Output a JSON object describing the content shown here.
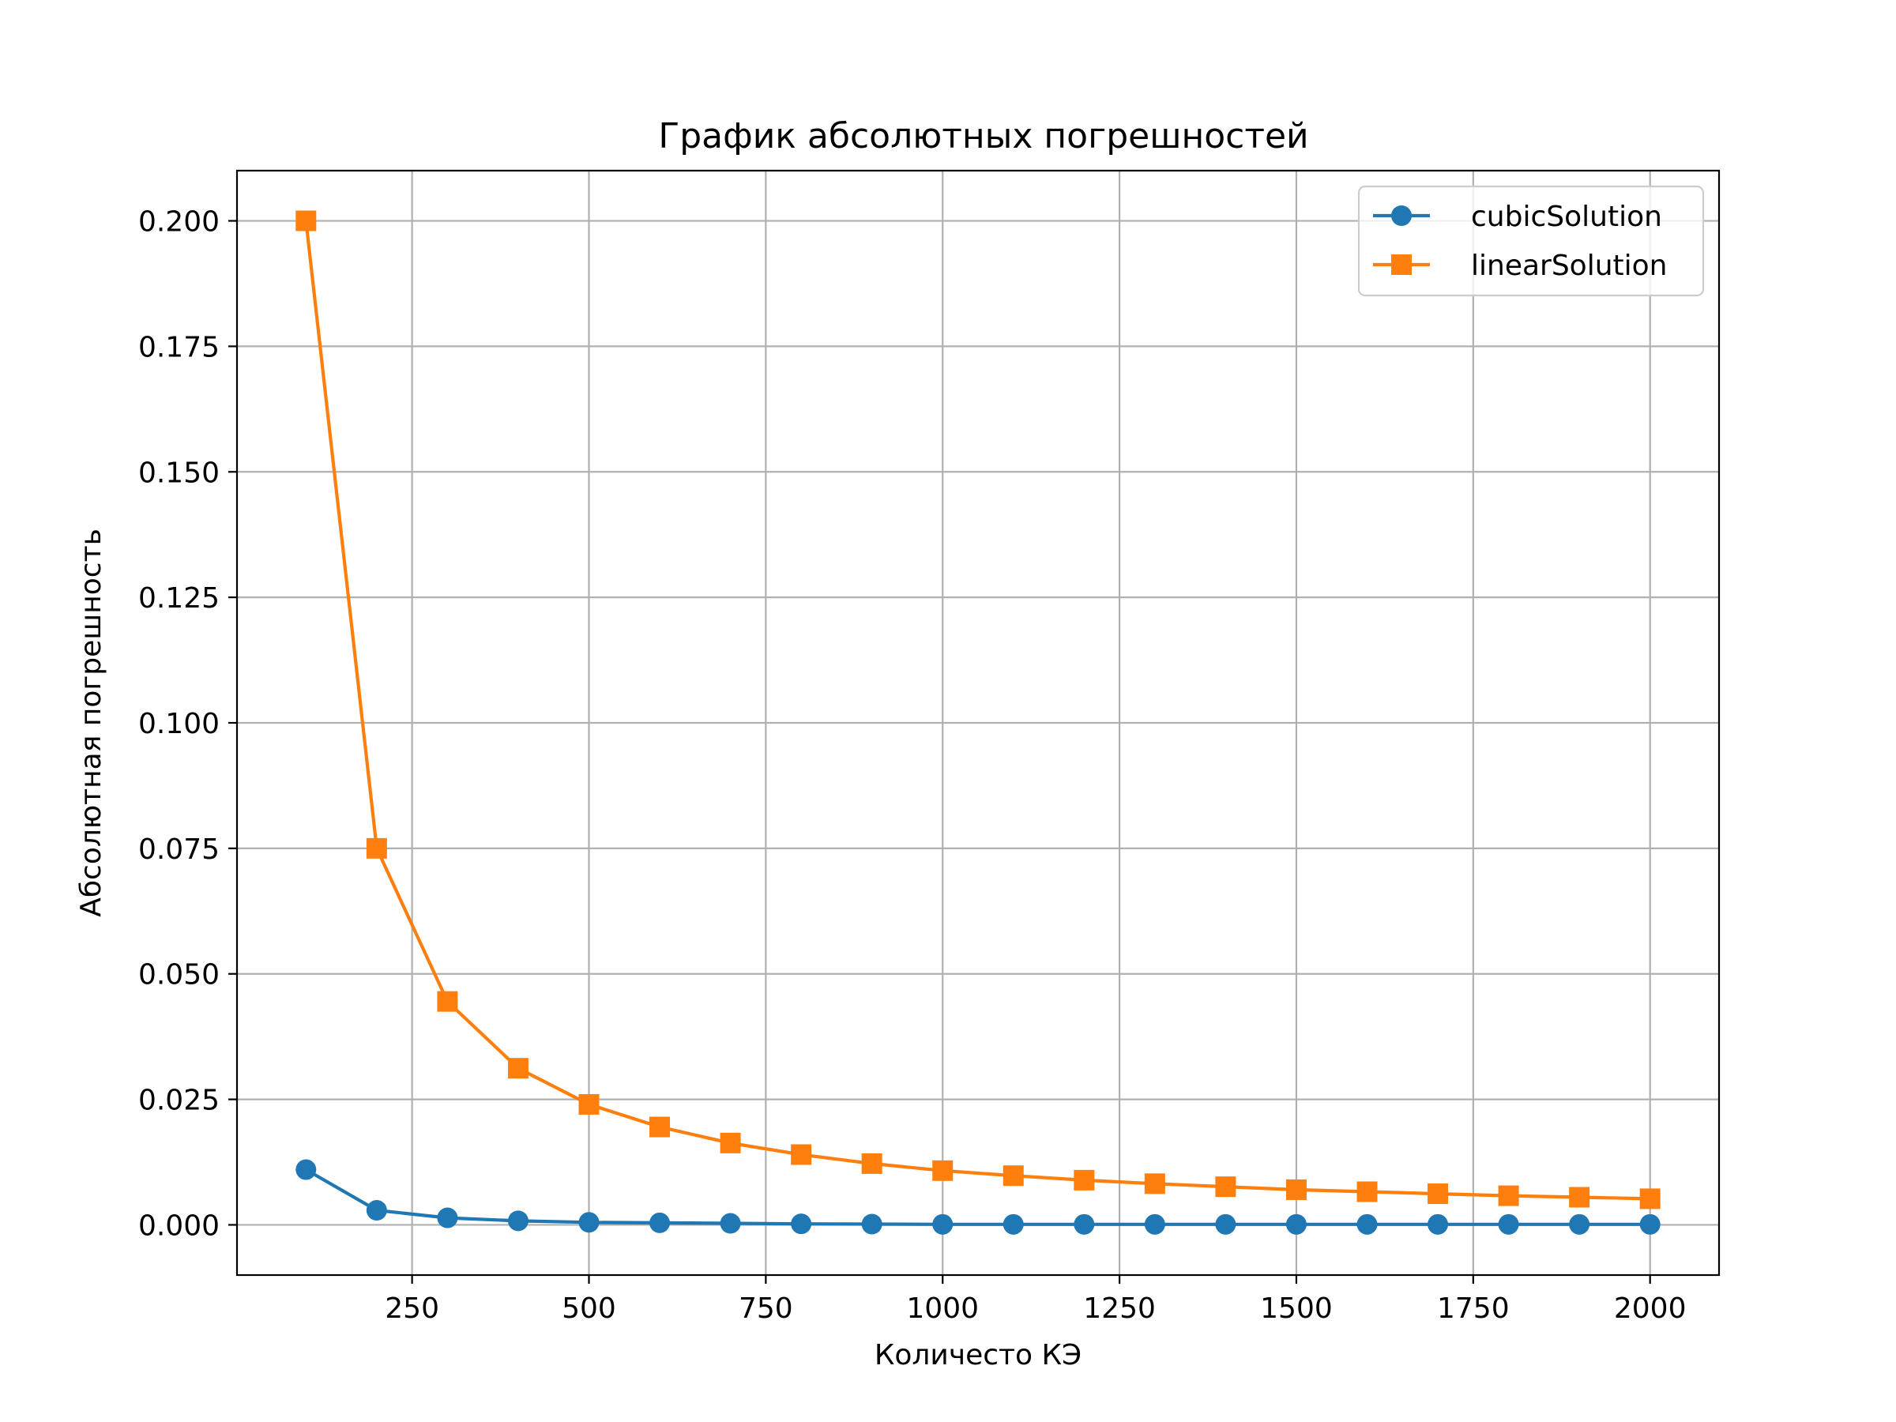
{
  "chart_data": {
    "type": "line",
    "title": "График абсолютных погрешностей",
    "xlabel": "Количесто КЭ",
    "ylabel": "Абсолютная погрешность",
    "xlim": [
      2.5,
      2097.5
    ],
    "ylim": [
      -0.01,
      0.21
    ],
    "x_ticks": [
      250,
      500,
      750,
      1000,
      1250,
      1500,
      1750,
      2000
    ],
    "x_tick_labels": [
      "250",
      "500",
      "750",
      "1000",
      "1250",
      "1500",
      "1750",
      "2000"
    ],
    "y_ticks": [
      0.0,
      0.025,
      0.05,
      0.075,
      0.1,
      0.125,
      0.15,
      0.175,
      0.2
    ],
    "y_tick_labels": [
      "0.000",
      "0.025",
      "0.050",
      "0.075",
      "0.100",
      "0.125",
      "0.150",
      "0.175",
      "0.200"
    ],
    "grid": true,
    "legend_position": "top-right",
    "x": [
      100,
      200,
      300,
      400,
      500,
      600,
      700,
      800,
      900,
      1000,
      1100,
      1200,
      1300,
      1400,
      1500,
      1600,
      1700,
      1800,
      1900,
      2000
    ],
    "series": [
      {
        "name": "cubicSolution",
        "color": "#1f77b4",
        "marker": "circle",
        "values": [
          0.011,
          0.0029,
          0.0014,
          0.0008,
          0.0005,
          0.0004,
          0.0003,
          0.0002,
          0.00015,
          0.0001,
          0.0001,
          0.0001,
          0.0001,
          0.0001,
          0.0001,
          0.0001,
          0.0001,
          0.0001,
          0.0001,
          0.0001
        ]
      },
      {
        "name": "linearSolution",
        "color": "#ff7f0e",
        "marker": "square",
        "values": [
          0.2,
          0.075,
          0.0445,
          0.0312,
          0.024,
          0.0195,
          0.0163,
          0.014,
          0.0122,
          0.0108,
          0.0098,
          0.0089,
          0.0082,
          0.0076,
          0.007,
          0.0066,
          0.0062,
          0.0058,
          0.0055,
          0.0052
        ]
      }
    ]
  }
}
